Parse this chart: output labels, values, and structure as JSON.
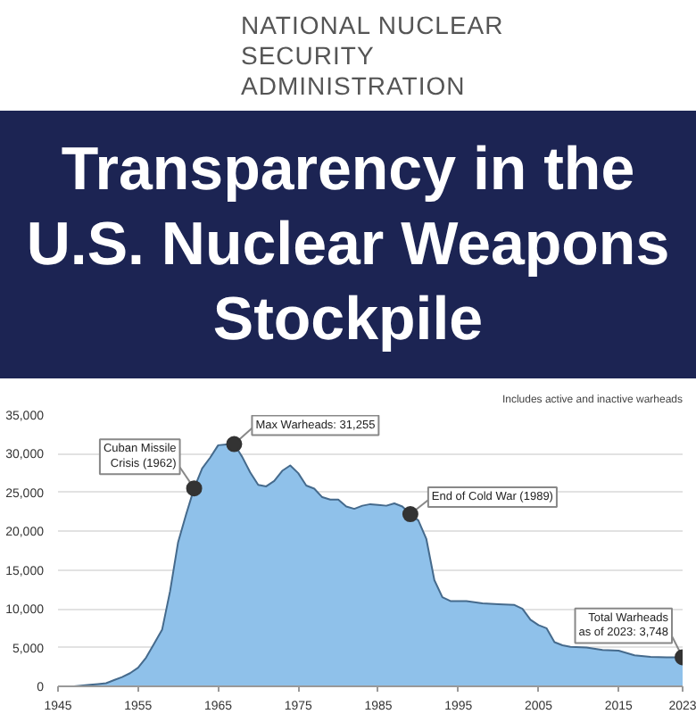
{
  "chart_data": {
    "type": "area",
    "title": "Transparency in the U.S. Nuclear Weapons Stockpile",
    "subtitle": "Includes active and inactive warheads",
    "annotations": [
      "NATIONAL NUCLEAR\nSECURITY\nADMINISTRATION",
      {
        "text": "Cuban Missile\nCrisis (1962)",
        "x": 1962,
        "y": 25540
      },
      {
        "text": "Max Warheads: 31,255",
        "x": 1967,
        "y": 31255
      },
      {
        "text": "End of Cold War (1989)",
        "x": 1989,
        "y": 22217
      },
      {
        "text": "Total Warheads\nas of 2023: 3,748",
        "x": 2023,
        "y": 3748
      }
    ],
    "x": [
      1945,
      1947,
      1949,
      1950,
      1951,
      1952,
      1953,
      1954,
      1955,
      1956,
      1957,
      1958,
      1959,
      1960,
      1961,
      1962,
      1963,
      1964,
      1965,
      1966,
      1967,
      1968,
      1969,
      1970,
      1971,
      1972,
      1973,
      1974,
      1975,
      1976,
      1977,
      1978,
      1979,
      1980,
      1981,
      1982,
      1983,
      1984,
      1985,
      1986,
      1987,
      1988,
      1989,
      1990,
      1991,
      1992,
      1993,
      1994,
      1996,
      1998,
      2000,
      2002,
      2003,
      2004,
      2005,
      2006,
      2007,
      2008,
      2009,
      2011,
      2013,
      2015,
      2017,
      2019,
      2021,
      2023
    ],
    "series": [
      {
        "color": "#8fc1ea",
        "values": [
          0,
          0,
          200,
          300,
          400,
          800,
          1200,
          1700,
          2400,
          3700,
          5500,
          7300,
          12300,
          18600,
          22200,
          25540,
          28100,
          29500,
          31100,
          31200,
          31255,
          29600,
          27600,
          26000,
          25800,
          26500,
          27800,
          28500,
          27500,
          25900,
          25500,
          24400,
          24100,
          24100,
          23200,
          22900,
          23300,
          23500,
          23400,
          23300,
          23600,
          23200,
          22217,
          21400,
          19000,
          13700,
          11500,
          11000,
          11000,
          10700,
          10600,
          10500,
          10000,
          8600,
          7900,
          7500,
          5700,
          5300,
          5100,
          5000,
          4700,
          4600,
          4000,
          3800,
          3750,
          3748
        ]
      }
    ],
    "xlim": [
      1945,
      2023
    ],
    "ylim": [
      0,
      35000
    ],
    "xticks": [
      1945,
      1955,
      1965,
      1975,
      1985,
      1995,
      2005,
      2015,
      2023
    ],
    "yticks": [
      0,
      {
        "value": 5000,
        "label": "5,000"
      },
      {
        "value": 10000,
        "label": "10,000"
      },
      {
        "value": 15000,
        "label": "15,000"
      },
      {
        "value": 20000,
        "label": "20,000"
      },
      {
        "value": 25000,
        "label": "25,000"
      },
      {
        "value": 30000,
        "label": "30,000"
      },
      {
        "value": 35000,
        "label": "35,000"
      }
    ],
    "grid": "y"
  }
}
